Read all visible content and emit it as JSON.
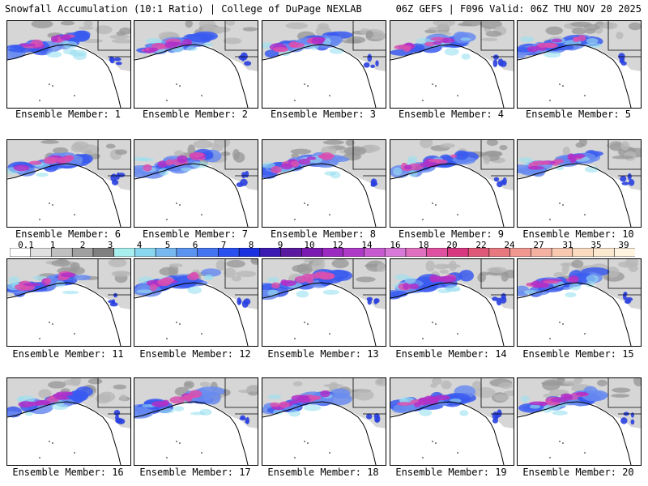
{
  "header": {
    "left_title": "Snowfall Accumulation (10:1 Ratio) | College of DuPage NEXLAB",
    "right_title": "06Z GEFS | F096 Valid: 06Z THU NOV 20 2025"
  },
  "caption_prefix": "Ensemble Member:",
  "members": [
    {
      "id": "1"
    },
    {
      "id": "2"
    },
    {
      "id": "3"
    },
    {
      "id": "4"
    },
    {
      "id": "5"
    },
    {
      "id": "6"
    },
    {
      "id": "7"
    },
    {
      "id": "8"
    },
    {
      "id": "9"
    },
    {
      "id": "10"
    },
    {
      "id": "11"
    },
    {
      "id": "12"
    },
    {
      "id": "13"
    },
    {
      "id": "14"
    },
    {
      "id": "15"
    },
    {
      "id": "16"
    },
    {
      "id": "17"
    },
    {
      "id": "18"
    },
    {
      "id": "19"
    },
    {
      "id": "20"
    }
  ],
  "colorbar": {
    "labels": [
      "0.1",
      "1",
      "2",
      "3",
      "4",
      "5",
      "6",
      "7",
      "8",
      "9",
      "10",
      "12",
      "14",
      "16",
      "18",
      "20",
      "22",
      "24",
      "27",
      "31",
      "35",
      "39"
    ],
    "colors": [
      "#ffffff",
      "#e0e0e0",
      "#c0c0c0",
      "#a0a0a0",
      "#808080",
      "#a8f0f0",
      "#8ad8f0",
      "#78b8f0",
      "#5a94f0",
      "#4474f0",
      "#2a50f0",
      "#1a30e0",
      "#3a1ab0",
      "#5a1aa0",
      "#7a1ab0",
      "#9a2ac0",
      "#b03ac8",
      "#c85ad0",
      "#d878d8",
      "#e070c0",
      "#e050a0",
      "#d83880",
      "#e05878",
      "#e87880",
      "#f09890",
      "#f4b0a0",
      "#f8c8b0",
      "#fcdcc0",
      "#fde8d0",
      "#fef4e0"
    ]
  }
}
